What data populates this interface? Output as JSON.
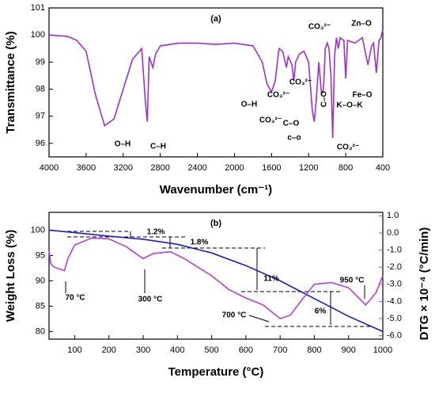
{
  "chart_data": [
    {
      "type": "line",
      "title": "(a)",
      "x_label": "Wavenumber (cm⁻¹)",
      "y_label": "Transmittance (%)",
      "xlim": [
        4000,
        400
      ],
      "ylim": [
        95.5,
        101
      ],
      "xticks": [
        4000,
        3600,
        3200,
        2800,
        2400,
        2000,
        1600,
        1200,
        800,
        400
      ],
      "yticks": [
        96,
        97,
        98,
        99,
        100,
        101
      ],
      "annotations": [
        "O–H",
        "C–H",
        "O–H",
        "CO₃²⁻",
        "CO₃²⁻",
        "CO₃²⁻",
        "C–O",
        "c–o",
        "C–O",
        "CO₃²⁻",
        "Zn–O",
        "Fe–O",
        "K–O–K",
        "CO₃²⁻"
      ],
      "series": [
        {
          "name": "FTIR",
          "color": "#9b30d9",
          "x": [
            4000,
            3800,
            3700,
            3600,
            3500,
            3400,
            3300,
            3200,
            3100,
            3000,
            2960,
            2940,
            2920,
            2880,
            2850,
            2800,
            2600,
            2400,
            2200,
            2000,
            1800,
            1700,
            1650,
            1600,
            1560,
            1520,
            1480,
            1440,
            1420,
            1380,
            1360,
            1340,
            1300,
            1250,
            1200,
            1160,
            1140,
            1120,
            1090,
            1060,
            1040,
            1020,
            1000,
            980,
            960,
            940,
            920,
            900,
            880,
            860,
            820,
            800,
            780,
            700,
            620,
            560,
            520,
            500,
            470,
            440,
            420,
            400
          ],
          "values": [
            100,
            99.95,
            99.8,
            99.4,
            97.8,
            96.65,
            96.9,
            98,
            99.1,
            99.5,
            97.5,
            96.8,
            99.2,
            98.8,
            99.3,
            99.6,
            99.7,
            99.7,
            99.65,
            99.7,
            99.6,
            99.0,
            98.2,
            97.9,
            98.3,
            99.5,
            99.4,
            98.8,
            99.2,
            98.9,
            98.3,
            99.0,
            99.3,
            99.4,
            99.0,
            97.2,
            96.8,
            97.5,
            99.0,
            97.8,
            98.0,
            99.5,
            99.7,
            99.5,
            98.5,
            96.2,
            99.2,
            99.9,
            99.5,
            99.9,
            99.8,
            98.4,
            99.8,
            99.7,
            99.9,
            98.9,
            99.6,
            99.7,
            98.6,
            99.8,
            99.9,
            100.2
          ]
        }
      ]
    },
    {
      "type": "line",
      "title": "(b)",
      "x_label": "Temperature (°C)",
      "y_label": "Weight Loss (%)",
      "y2_label": "DTG × 10⁻⁴ (°C/min)",
      "xlim": [
        25,
        1000
      ],
      "ylim": [
        78.5,
        103.5
      ],
      "y2lim": [
        -6.2,
        1.2
      ],
      "xticks": [
        100,
        200,
        300,
        400,
        500,
        600,
        700,
        800,
        900,
        1000
      ],
      "yticks": [
        80,
        85,
        90,
        95,
        100
      ],
      "y2ticks": [
        {
          "value": 1,
          "label": "1.0"
        },
        {
          "value": 0,
          "label": "0.0"
        },
        {
          "value": -1,
          "label": "-1.0"
        },
        {
          "value": -2,
          "label": "-2.0"
        },
        {
          "value": -3,
          "label": "-3.0"
        },
        {
          "value": -4,
          "label": "-4.0"
        },
        {
          "value": -5,
          "label": "-5.0"
        },
        {
          "value": -6,
          "label": "-6.0"
        }
      ],
      "annotations": [
        "1.2%",
        "1.8%",
        "11%",
        "6%",
        "70 °C",
        "300 °C",
        "700 °C",
        "950 °C"
      ],
      "series": [
        {
          "name": "Weight Loss",
          "color": "#1c1cd6",
          "x": [
            25,
            100,
            200,
            300,
            400,
            500,
            600,
            700,
            800,
            900,
            1000
          ],
          "values": [
            100,
            99.5,
            98.8,
            98.2,
            97.2,
            95.5,
            93,
            90,
            86.5,
            83,
            80
          ]
        },
        {
          "name": "DTG",
          "color": "#b040e0",
          "axis": "y2",
          "x": [
            25,
            30,
            40,
            70,
            80,
            100,
            150,
            200,
            250,
            300,
            330,
            380,
            420,
            500,
            550,
            600,
            650,
            700,
            730,
            760,
            800,
            850,
            900,
            950,
            980,
            1000
          ],
          "values": [
            -1.0,
            -1.8,
            -2.0,
            -2.2,
            -1.5,
            -0.7,
            -0.3,
            -0.35,
            -0.8,
            -1.5,
            -1.2,
            -1.1,
            -1.5,
            -2.5,
            -3.3,
            -3.8,
            -4.2,
            -5.0,
            -4.8,
            -4.0,
            -3.0,
            -2.9,
            -3.2,
            -4.2,
            -3.5,
            -2.5
          ]
        }
      ]
    }
  ]
}
